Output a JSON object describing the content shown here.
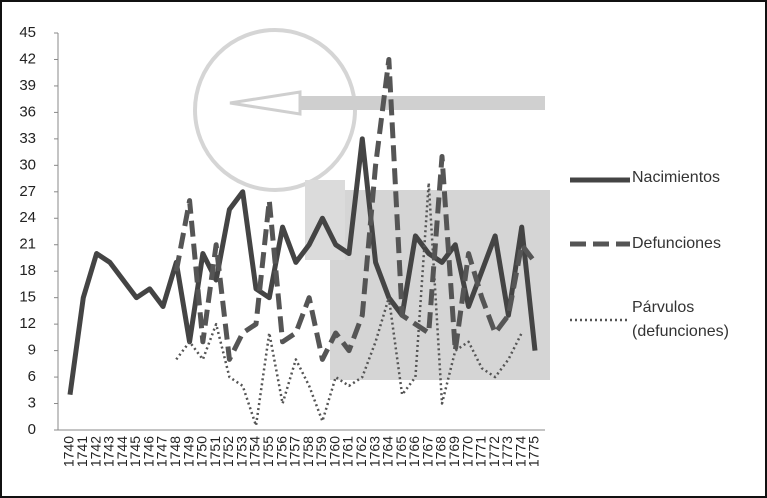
{
  "chart_data": {
    "type": "line",
    "categories": [
      "1740",
      "1741",
      "1742",
      "1743",
      "1744",
      "1745",
      "1746",
      "1747",
      "1748",
      "1749",
      "1750",
      "1751",
      "1752",
      "1753",
      "1754",
      "1755",
      "1756",
      "1757",
      "1758",
      "1759",
      "1760",
      "1761",
      "1762",
      "1763",
      "1764",
      "1765",
      "1766",
      "1767",
      "1768",
      "1769",
      "1770",
      "1771",
      "1772",
      "1773",
      "1774",
      "1775"
    ],
    "series": [
      {
        "name": "Nacimientos",
        "color": "#444444",
        "dash": "none",
        "values": [
          4,
          15,
          20,
          19,
          17,
          15,
          16,
          14,
          19,
          10,
          20,
          17,
          25,
          27,
          16,
          15,
          23,
          19,
          21,
          24,
          21,
          20,
          33,
          19,
          15,
          13,
          22,
          20,
          19,
          21,
          14,
          18,
          22,
          13,
          23,
          9
        ]
      },
      {
        "name": "Defunciones",
        "color": "#555555",
        "dash": "dashed",
        "values": [
          null,
          null,
          null,
          null,
          null,
          null,
          null,
          null,
          18,
          26,
          10,
          21,
          8,
          11,
          12,
          26,
          10,
          11,
          15,
          8,
          11,
          9,
          13,
          30,
          42,
          13,
          12,
          11,
          31,
          9,
          20,
          15,
          11,
          13,
          21,
          19
        ]
      },
      {
        "name": "Párvulos (defunciones)",
        "color": "#555555",
        "dash": "dotted",
        "values": [
          null,
          null,
          null,
          null,
          null,
          null,
          null,
          null,
          8,
          10,
          8,
          12,
          6,
          5,
          0.5,
          11,
          3,
          8,
          5,
          1,
          6,
          5,
          6,
          10,
          15,
          4,
          6,
          28,
          3,
          9,
          10,
          7,
          6,
          8,
          11,
          null
        ]
      }
    ],
    "ylim": [
      0,
      45
    ],
    "yticks": [
      0,
      3,
      6,
      9,
      12,
      15,
      18,
      21,
      24,
      27,
      30,
      33,
      36,
      39,
      42,
      45
    ],
    "legend": "right"
  }
}
